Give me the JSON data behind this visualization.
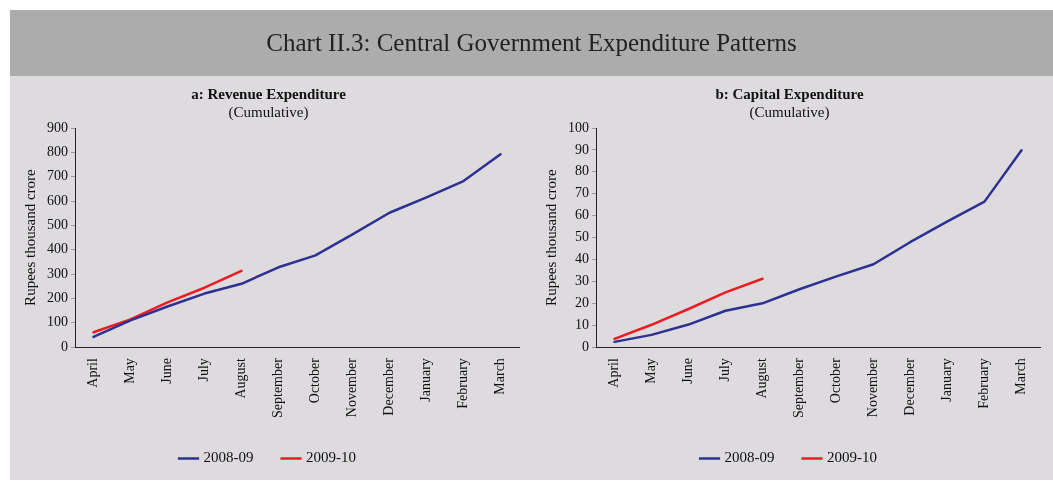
{
  "chart_data": [
    {
      "type": "line",
      "title": "a: Revenue Expenditure",
      "subtitle": "(Cumulative)",
      "ylabel": "Rupees thousand crore",
      "annotations": [
        "Chart II.3: Central Government Expenditure Patterns"
      ],
      "categories": [
        "April",
        "May",
        "June",
        "July",
        "August",
        "September",
        "October",
        "November",
        "December",
        "January",
        "February",
        "March"
      ],
      "series": [
        {
          "name": "2008-09",
          "color": "#2e3192",
          "values": [
            42,
            110,
            167,
            220,
            260,
            328,
            377,
            463,
            552,
            615,
            682,
            792
          ]
        },
        {
          "name": "2009-10",
          "color": "#ed1c24",
          "values": [
            61,
            114,
            184,
            244,
            313,
            null,
            null,
            null,
            null,
            null,
            null,
            null
          ]
        }
      ],
      "ylim": [
        0,
        900
      ],
      "yticks": [
        0,
        100,
        200,
        300,
        400,
        500,
        600,
        700,
        800,
        900
      ],
      "grid": false,
      "legend": "bottom",
      "marker": "none",
      "line_style": "solid"
    },
    {
      "type": "line",
      "title": "b: Capital Expenditure",
      "subtitle": "(Cumulative)",
      "ylabel": "Rupees thousand crore",
      "categories": [
        "April",
        "May",
        "June",
        "July",
        "August",
        "September",
        "October",
        "November",
        "December",
        "January",
        "February",
        "March"
      ],
      "series": [
        {
          "name": "2008-09",
          "color": "#2e3192",
          "values": [
            2.4,
            5.6,
            10.3,
            16.6,
            20,
            26.4,
            32.3,
            37.8,
            48,
            57.4,
            66.4,
            89.8
          ]
        },
        {
          "name": "2009-10",
          "color": "#ed1c24",
          "values": [
            3.8,
            10.2,
            17.4,
            25,
            31.2,
            null,
            null,
            null,
            null,
            null,
            null,
            null
          ]
        }
      ],
      "ylim": [
        0,
        100
      ],
      "yticks": [
        0,
        10,
        20,
        30,
        40,
        50,
        60,
        70,
        80,
        90,
        100
      ],
      "grid": false,
      "legend": "bottom",
      "marker": "none",
      "line_style": "solid"
    }
  ]
}
